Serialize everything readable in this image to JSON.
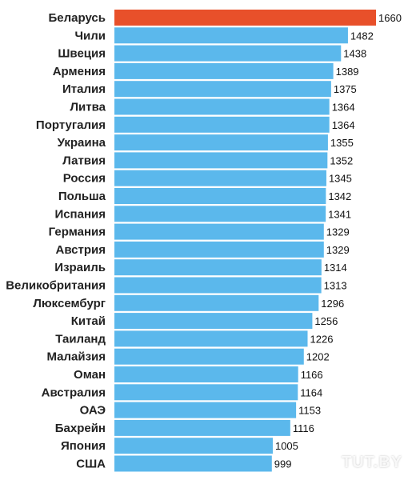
{
  "chart_data": {
    "type": "bar",
    "orientation": "horizontal",
    "categories": [
      "Беларусь",
      "Чили",
      "Швеция",
      "Армения",
      "Италия",
      "Литва",
      "Португалия",
      "Украина",
      "Латвия",
      "Россия",
      "Польша",
      "Испания",
      "Германия",
      "Австрия",
      "Израиль",
      "Великобритания",
      "Люксембург",
      "Китай",
      "Таиланд",
      "Малайзия",
      "Оман",
      "Австралия",
      "ОАЭ",
      "Бахрейн",
      "Япония",
      "США"
    ],
    "values": [
      1660,
      1482,
      1438,
      1389,
      1375,
      1364,
      1364,
      1355,
      1352,
      1345,
      1342,
      1341,
      1329,
      1329,
      1314,
      1313,
      1296,
      1256,
      1226,
      1202,
      1166,
      1164,
      1153,
      1116,
      1005,
      999
    ],
    "title": "",
    "xlabel": "",
    "ylabel": "",
    "grid": false,
    "highlight_index": 0
  },
  "colors": {
    "bar": "#5bb8ec",
    "highlight": "#e8502a"
  },
  "watermark": "TUT.BY"
}
